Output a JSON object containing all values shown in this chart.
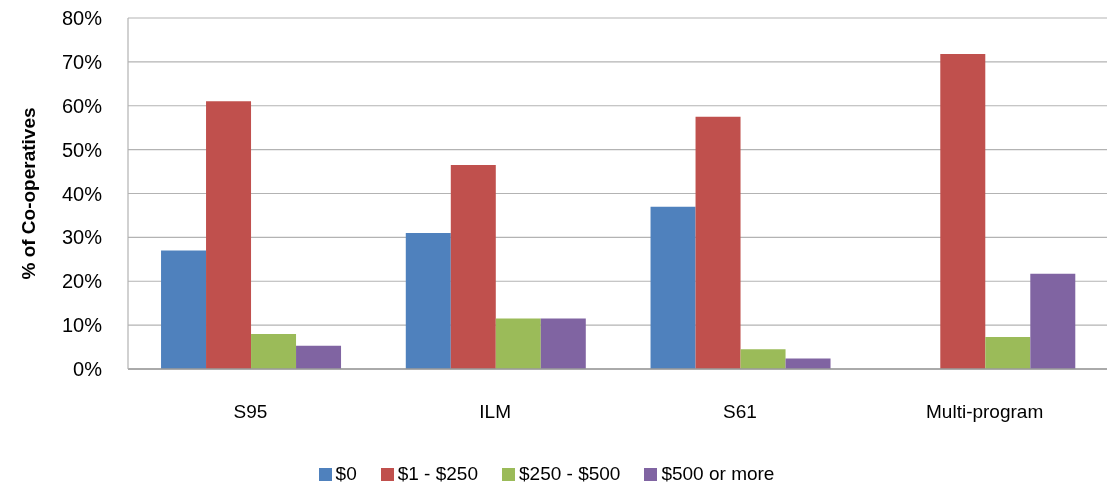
{
  "chart_data": {
    "type": "bar",
    "ylabel": "% of Co-operatives",
    "categories": [
      "S95",
      "ILM",
      "S61",
      "Multi-program"
    ],
    "series": [
      {
        "name": "$0",
        "color": "#4f81bd",
        "values": [
          27,
          31,
          37,
          0
        ]
      },
      {
        "name": "$1 - $250",
        "color": "#c0504d",
        "values": [
          61,
          46.5,
          57.5,
          71.8
        ]
      },
      {
        "name": "$250 - $500",
        "color": "#9bbb59",
        "values": [
          8,
          11.5,
          4.5,
          7.3
        ]
      },
      {
        "name": "$500 or more",
        "color": "#8064a2",
        "values": [
          5.3,
          11.5,
          2.4,
          21.7
        ]
      }
    ],
    "ylim": [
      0,
      80
    ],
    "yticks": [
      {
        "value": 0,
        "label": "0%"
      },
      {
        "value": 10,
        "label": "10%"
      },
      {
        "value": 20,
        "label": "20%"
      },
      {
        "value": 30,
        "label": "30%"
      },
      {
        "value": 40,
        "label": "40%"
      },
      {
        "value": 50,
        "label": "50%"
      },
      {
        "value": 60,
        "label": "60%"
      },
      {
        "value": 70,
        "label": "70%"
      },
      {
        "value": 80,
        "label": "80%"
      }
    ],
    "grid": "y",
    "legend": "bottom"
  }
}
